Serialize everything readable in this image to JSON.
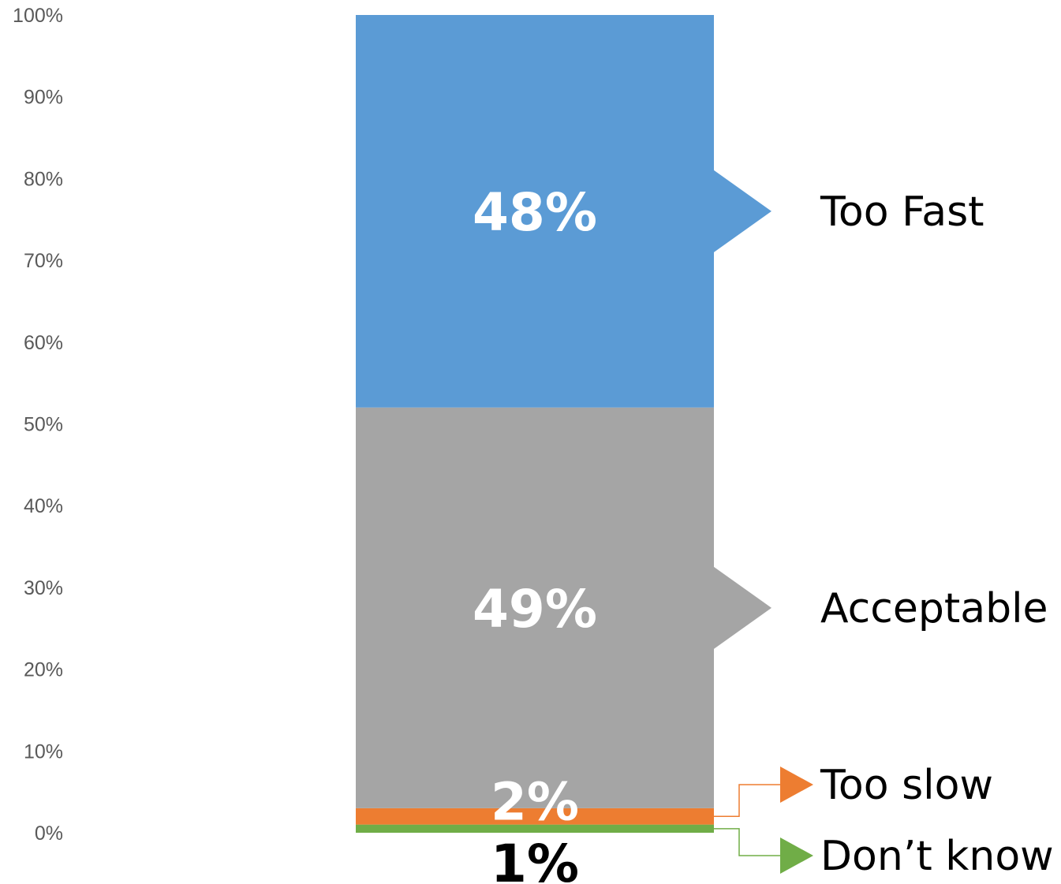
{
  "chart_data": {
    "type": "bar",
    "stacked": true,
    "categories": [
      ""
    ],
    "series": [
      {
        "name": "Don’t know",
        "values": [
          1
        ],
        "color": "#70ad47",
        "label": "1%",
        "label_color": "#000000"
      },
      {
        "name": "Too slow",
        "values": [
          2
        ],
        "color": "#ed7d31",
        "label": "2%",
        "label_color": "#ffffff"
      },
      {
        "name": "Acceptable",
        "values": [
          49
        ],
        "color": "#a5a5a5",
        "label": "49%",
        "label_color": "#ffffff"
      },
      {
        "name": "Too Fast",
        "values": [
          48
        ],
        "color": "#5b9bd5",
        "label": "48%",
        "label_color": "#ffffff"
      }
    ],
    "yticks": [
      "0%",
      "10%",
      "20%",
      "30%",
      "40%",
      "50%",
      "60%",
      "70%",
      "80%",
      "90%",
      "100%"
    ],
    "ylim": [
      0,
      100
    ],
    "grid": false,
    "legend": "callouts on the right"
  }
}
